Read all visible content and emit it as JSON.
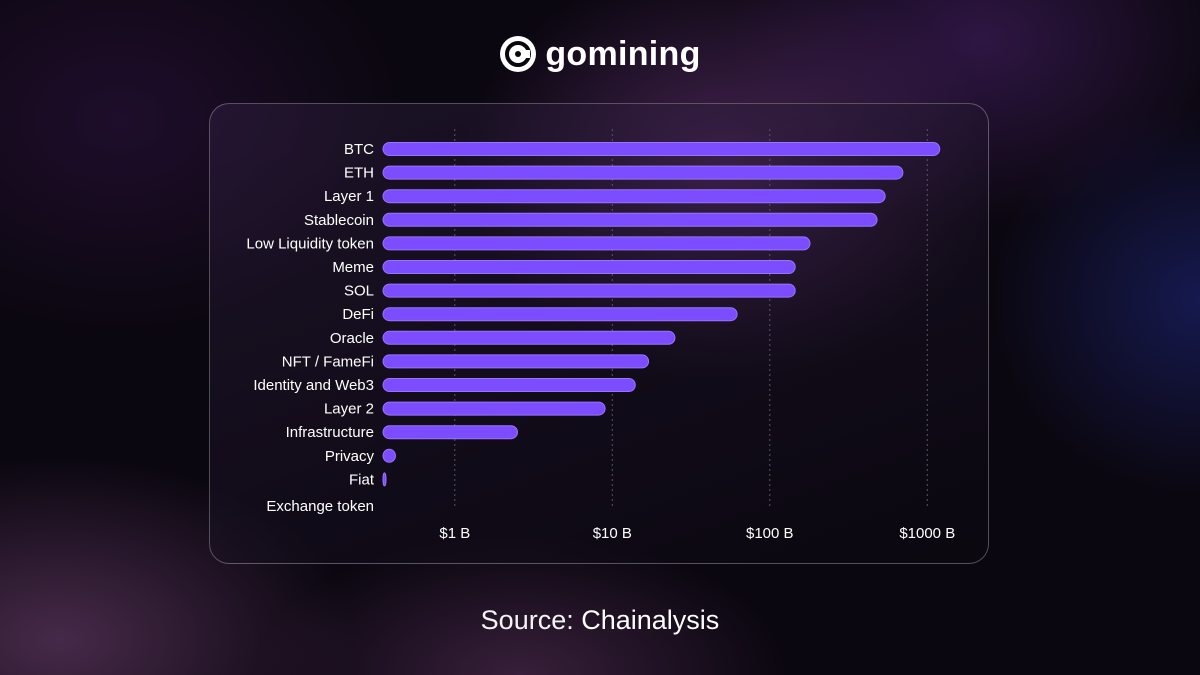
{
  "brand": {
    "name": "gomining",
    "logo_icon": "gomining-logo-icon"
  },
  "colors": {
    "bar": "#7b4dff",
    "bar_highlight": "#9a72ff",
    "grid": "#5a5566",
    "text": "#ffffff"
  },
  "chart_data": {
    "type": "bar",
    "orientation": "horizontal",
    "title": "",
    "xlabel": "",
    "ylabel": "",
    "x_scale": "log",
    "xlim": [
      0.35,
      1500
    ],
    "grid": "vertical dotted lines at ticks",
    "legend": "none",
    "categories": [
      "BTC",
      "ETH",
      "Layer 1",
      "Stablecoin",
      "Low Liquidity token",
      "Meme",
      "SOL",
      "DeFi",
      "Oracle",
      "NFT / FameFi",
      "Identity and Web3",
      "Layer 2",
      "Infrastructure",
      "Privacy",
      "Fiat",
      "Exchange token"
    ],
    "values": [
      1200,
      700,
      540,
      480,
      180,
      145,
      145,
      62,
      25,
      17,
      14,
      9,
      2.5,
      0.42,
      0.36,
      0.35
    ],
    "unit": "B",
    "ticks": [
      {
        "value": 1,
        "label": "$1 B"
      },
      {
        "value": 10,
        "label": "$10 B"
      },
      {
        "value": 100,
        "label": "$100 B"
      },
      {
        "value": 1000,
        "label": "$1000 B"
      }
    ]
  },
  "footer": {
    "source_prefix": "Source:",
    "source_name": "Chainalysis"
  }
}
